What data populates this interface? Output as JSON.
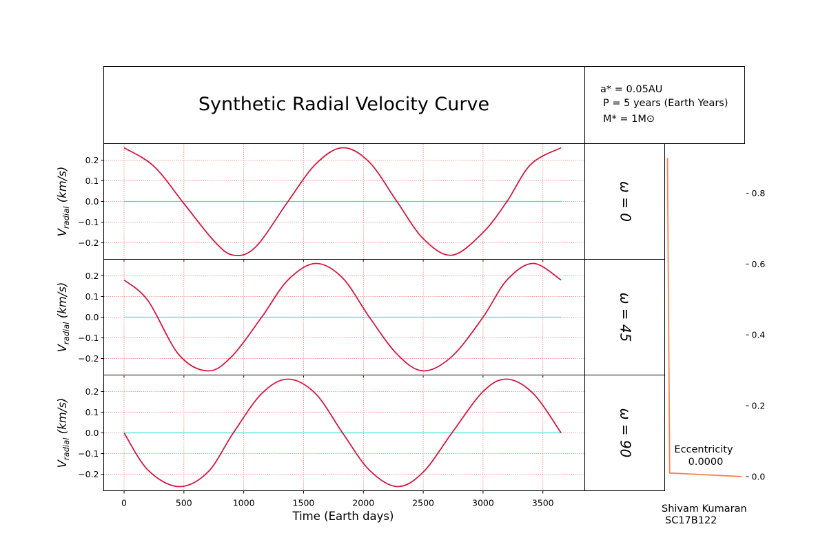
{
  "title": "Synthetic Radial Velocity Curve",
  "params": {
    "line1": "a* = 0.05AU",
    "line2": "P = 5 years (Earth Years)",
    "line3": "M* = 1M⊙"
  },
  "ylabel": "V",
  "ylabel_sub": "radial",
  "ylabel_unit": " (km/s)",
  "xlabel": "Time (Earth days)",
  "eccentricity_label": "Eccentricity",
  "eccentricity_value": "0.0000",
  "author": "Shivam Kumaran",
  "roll": "SC17B122",
  "colors": {
    "curve": "#d6163c",
    "zero_line": "#40e0d0",
    "grid": "#f08080",
    "ecc_line": "#ff7f50"
  },
  "chart_data": [
    {
      "type": "line",
      "panel_label": "ω = 0",
      "series": [
        {
          "name": "",
          "x": [
            0,
            250,
            500,
            750,
            913,
            1100,
            1370,
            1600,
            1826,
            2050,
            2280,
            2500,
            2740,
            3000,
            3200,
            3400,
            3652
          ],
          "y": [
            0.26,
            0.17,
            -0.01,
            -0.19,
            -0.26,
            -0.22,
            0.0,
            0.18,
            0.26,
            0.19,
            0.0,
            -0.18,
            -0.26,
            -0.15,
            0.0,
            0.18,
            0.26
          ]
        },
        {
          "name": "",
          "x": [
            0,
            3652
          ],
          "y": [
            0,
            0
          ]
        }
      ],
      "xlim": [
        -170,
        3850
      ],
      "ylim": [
        -0.28,
        0.28
      ],
      "yticks": [
        0.2,
        0.1,
        0.0,
        -0.1,
        -0.2
      ],
      "ytick_labels": [
        "0.2",
        "0.1",
        "0.0",
        "−0.1",
        "−0.2"
      ],
      "xticks": [
        0,
        500,
        1000,
        1500,
        2000,
        2500,
        3000,
        3500
      ],
      "grid": true
    },
    {
      "type": "line",
      "panel_label": "ω = 45",
      "series": [
        {
          "name": "",
          "x": [
            0,
            200,
            456,
            700,
            900,
            1150,
            1370,
            1600,
            1826,
            2050,
            2283,
            2500,
            2740,
            3000,
            3200,
            3420,
            3652
          ],
          "y": [
            0.18,
            0.08,
            -0.18,
            -0.26,
            -0.19,
            0.0,
            0.18,
            0.26,
            0.19,
            0.0,
            -0.18,
            -0.26,
            -0.19,
            0.0,
            0.18,
            0.26,
            0.18
          ]
        },
        {
          "name": "",
          "x": [
            0,
            3652
          ],
          "y": [
            0,
            0
          ]
        }
      ],
      "xlim": [
        -170,
        3850
      ],
      "ylim": [
        -0.28,
        0.28
      ],
      "yticks": [
        0.2,
        0.1,
        0.0,
        -0.1,
        -0.2
      ],
      "ytick_labels": [
        "0.2",
        "0.1",
        "0.0",
        "−0.1",
        "−0.2"
      ],
      "xticks": [
        0,
        500,
        1000,
        1500,
        2000,
        2500,
        3000,
        3500
      ],
      "grid": true
    },
    {
      "type": "line",
      "panel_label": "ω = 90",
      "series": [
        {
          "name": "",
          "x": [
            0,
            200,
            456,
            700,
            913,
            1150,
            1370,
            1600,
            1826,
            2050,
            2283,
            2500,
            2740,
            3000,
            3200,
            3420,
            3652
          ],
          "y": [
            0.0,
            -0.18,
            -0.26,
            -0.19,
            0.0,
            0.19,
            0.26,
            0.19,
            0.0,
            -0.18,
            -0.26,
            -0.19,
            0.0,
            0.2,
            0.26,
            0.19,
            0.0
          ]
        },
        {
          "name": "",
          "x": [
            0,
            3652
          ],
          "y": [
            0,
            0
          ]
        }
      ],
      "xlim": [
        -170,
        3850
      ],
      "ylim": [
        -0.28,
        0.28
      ],
      "yticks": [
        0.2,
        0.1,
        0.0,
        -0.1,
        -0.2
      ],
      "ytick_labels": [
        "0.2",
        "0.1",
        "0.0",
        "−0.1",
        "−0.2"
      ],
      "xticks": [
        0,
        500,
        1000,
        1500,
        2000,
        2500,
        3000,
        3500
      ],
      "xtick_labels": [
        "0",
        "500",
        "1000",
        "1500",
        "2000",
        "2500",
        "3000",
        "3500"
      ],
      "xlabel": "Time (Earth days)",
      "grid": true
    },
    {
      "type": "line",
      "panel_label": "Eccentricity",
      "series": [
        {
          "name": "",
          "x": [
            0.0,
            0.03,
            1.0
          ],
          "y": [
            0.9,
            0.01,
            0.0
          ]
        }
      ],
      "ylim": [
        -0.04,
        0.94
      ],
      "yticks": [
        0.8,
        0.6,
        0.4,
        0.2,
        0.0
      ],
      "ytick_labels": [
        "0.8",
        "0.6",
        "0.4",
        "0.2",
        "0.0"
      ]
    }
  ]
}
